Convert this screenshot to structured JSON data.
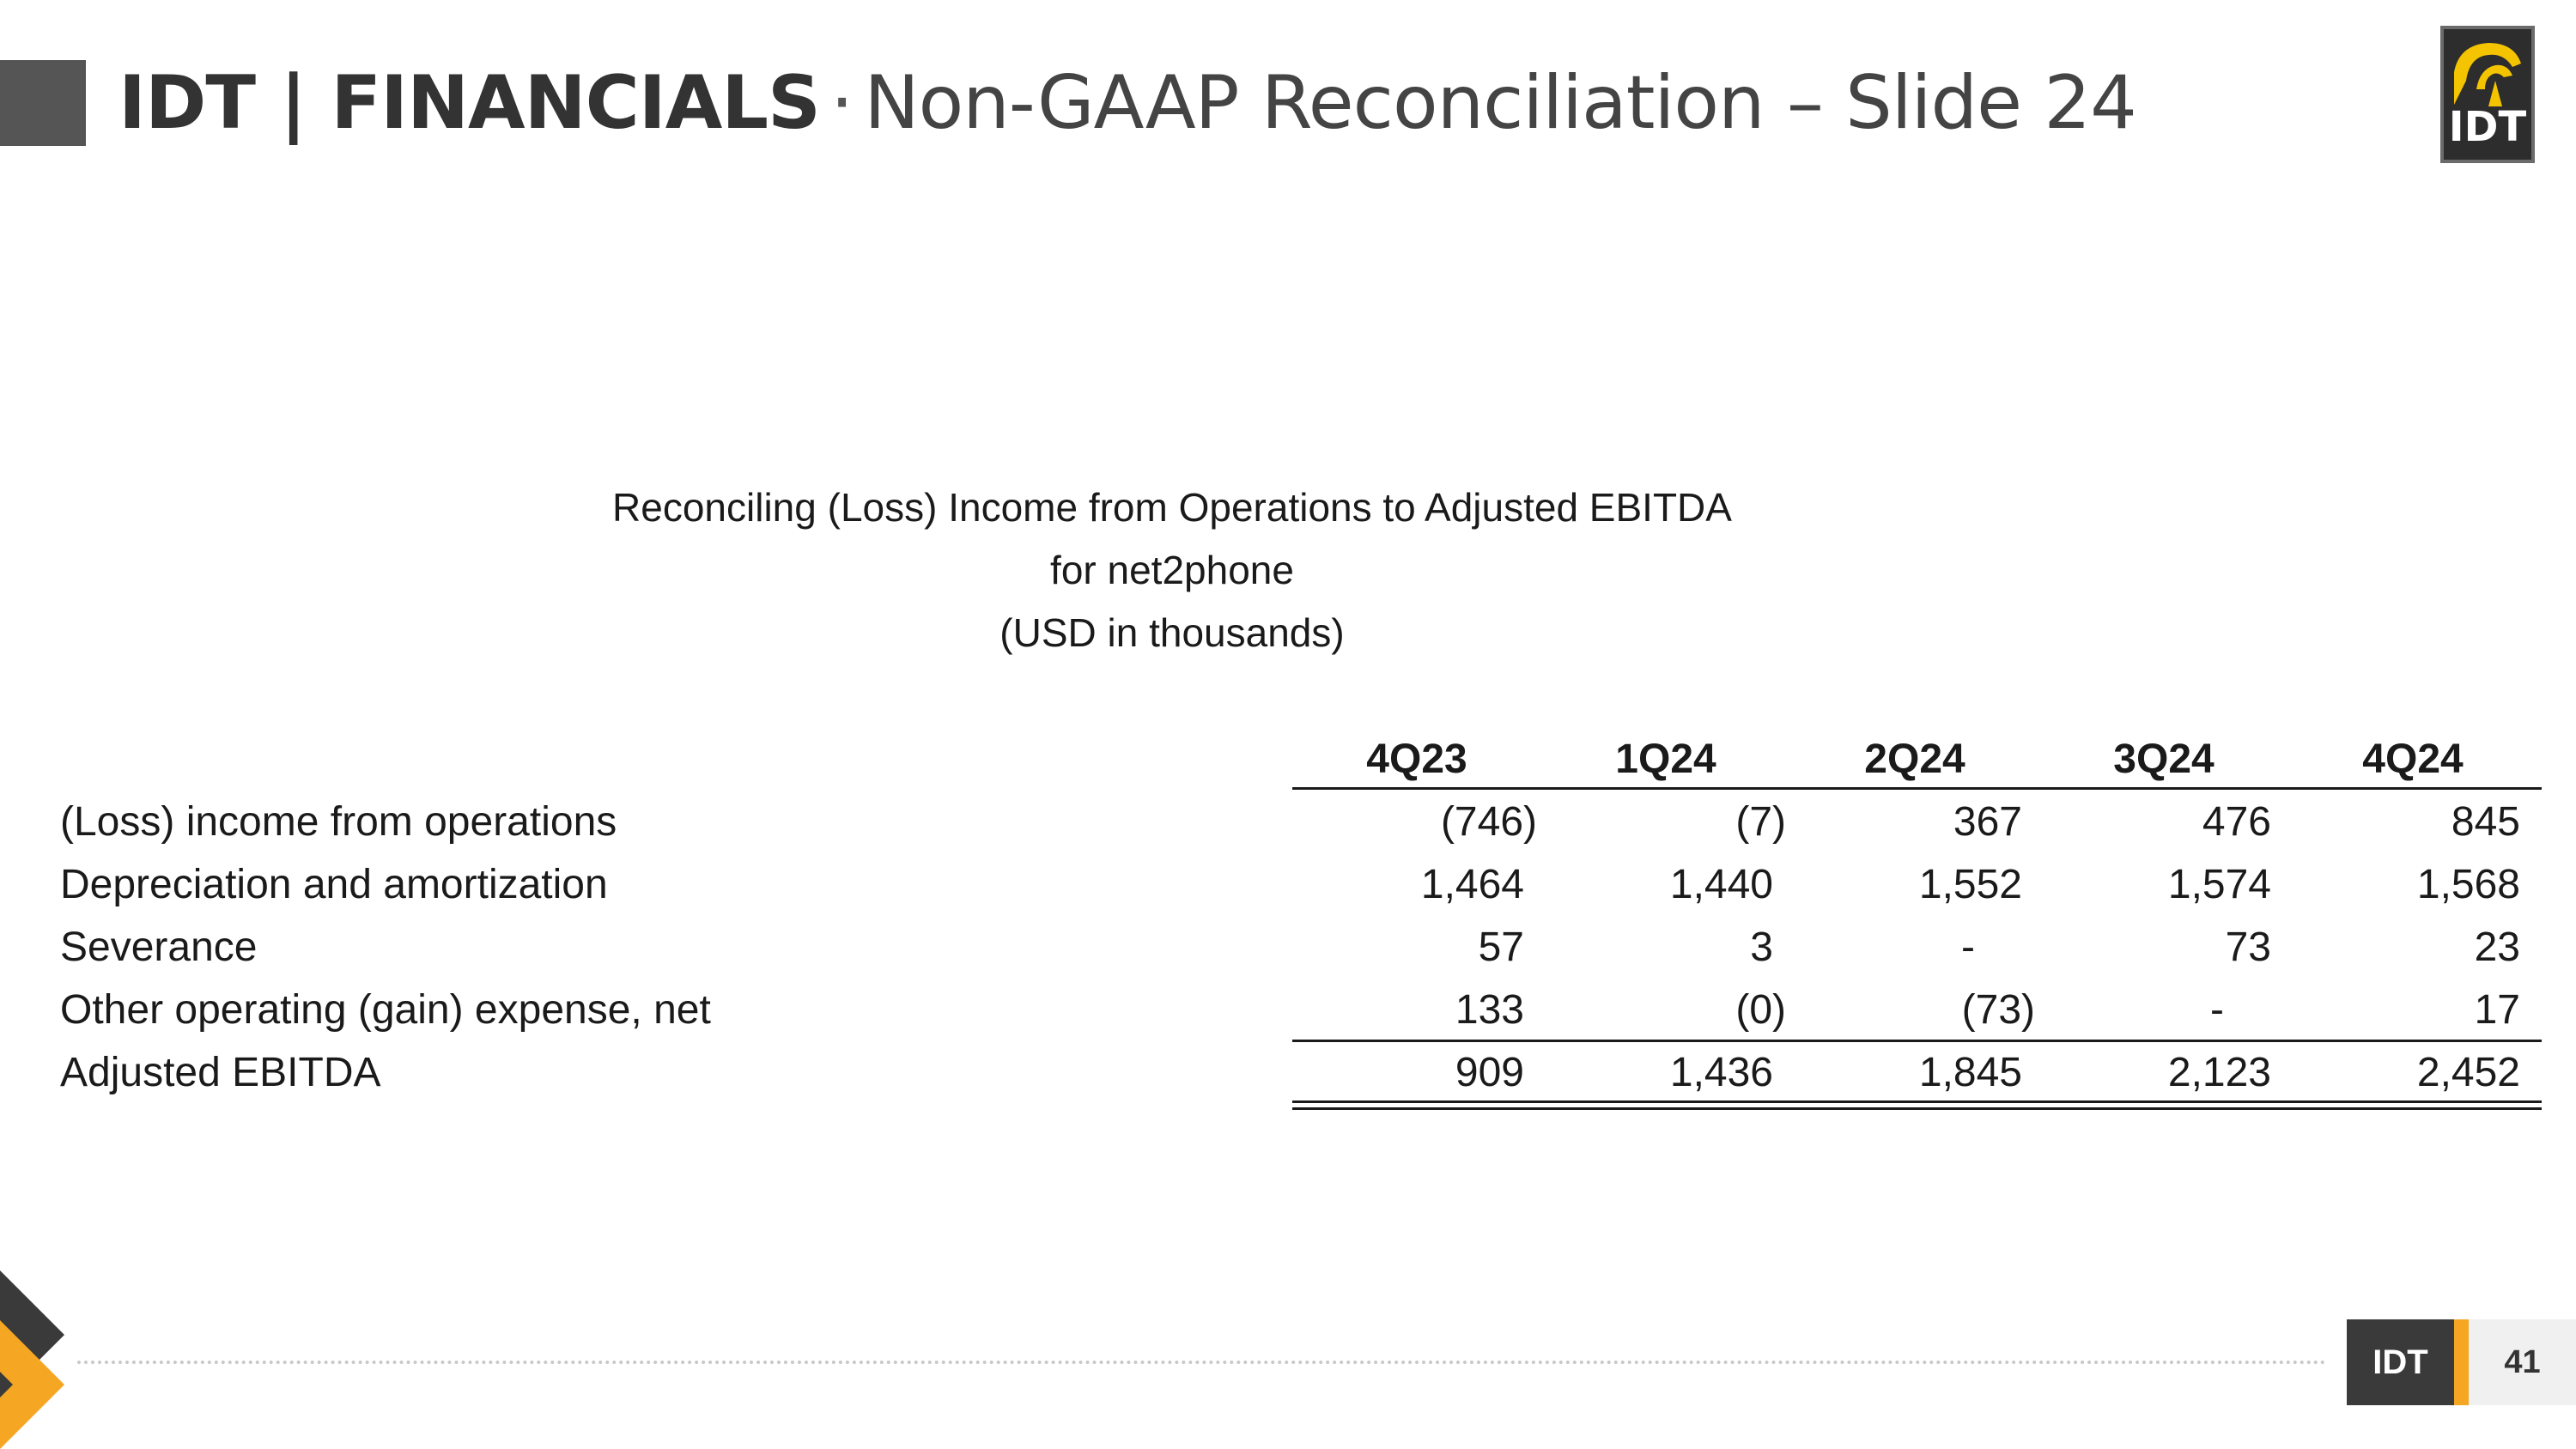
{
  "header": {
    "brand": "IDT | FINANCIALS",
    "separator": "·",
    "subtitle": "Non-GAAP Reconciliation – Slide 24"
  },
  "logo": {
    "text": "IDT",
    "icon": "idt-logo-icon"
  },
  "table_title": {
    "line1": "Reconciling (Loss) Income from Operations to Adjusted EBITDA",
    "line2": "for net2phone",
    "line3": "(USD in thousands)"
  },
  "columns": [
    "4Q23",
    "1Q24",
    "2Q24",
    "3Q24",
    "4Q24"
  ],
  "rows": [
    {
      "label": "(Loss) income from operations",
      "values": [
        "(746)",
        "(7)",
        "367",
        "476",
        "845"
      ]
    },
    {
      "label": "Depreciation and amortization",
      "values": [
        "1,464",
        "1,440",
        "1,552",
        "1,574",
        "1,568"
      ]
    },
    {
      "label": "Severance",
      "values": [
        "57",
        "3",
        "-",
        "73",
        "23"
      ]
    },
    {
      "label": "Other operating (gain) expense, net",
      "values": [
        "133",
        "(0)",
        "(73)",
        "-",
        "17"
      ]
    },
    {
      "label": "Adjusted EBITDA",
      "values": [
        "909",
        "1,436",
        "1,845",
        "2,123",
        "2,452"
      ]
    }
  ],
  "footer": {
    "brand": "IDT",
    "page": "41"
  },
  "colors": {
    "accent": "#f5a623",
    "dark": "#3a3a3a",
    "gray_block": "#555555"
  }
}
